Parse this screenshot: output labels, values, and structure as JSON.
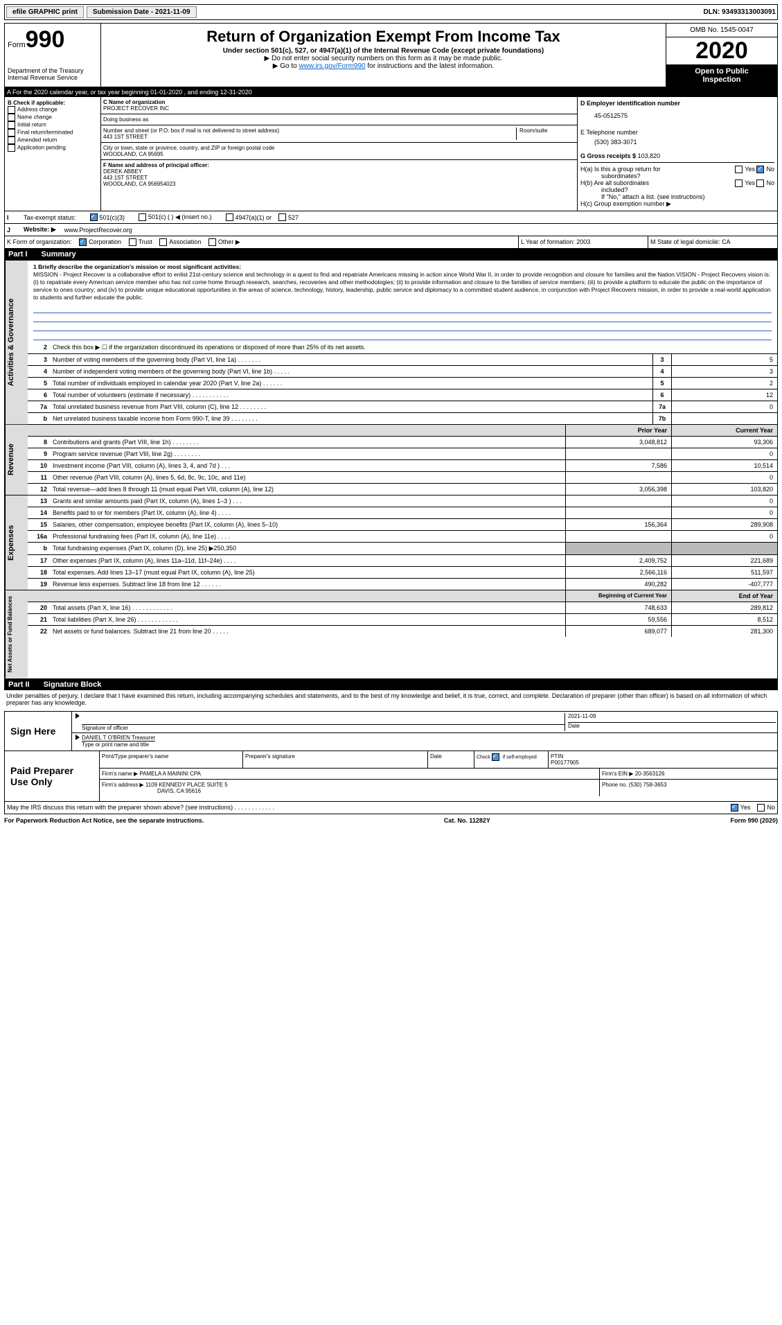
{
  "topbar": {
    "efile": "efile GRAPHIC print",
    "sub_lbl": "Submission Date - 2021-11-09",
    "dln": "DLN: 93493313003091"
  },
  "header": {
    "form_prefix": "Form",
    "form_num": "990",
    "dept": "Department of the Treasury",
    "irs": "Internal Revenue Service",
    "title": "Return of Organization Exempt From Income Tax",
    "sub1": "Under section 501(c), 527, or 4947(a)(1) of the Internal Revenue Code (except private foundations)",
    "sub2": "▶ Do not enter social security numbers on this form as it may be made public.",
    "sub3": "▶ Go to www.irs.gov/Form990 for instructions and the latest information.",
    "omb": "OMB No. 1545-0047",
    "year": "2020",
    "open": "Open to Public",
    "insp": "Inspection"
  },
  "bar_a": "A For the 2020 calendar year, or tax year beginning 01-01-2020    , and ending 12-31-2020",
  "sec_b": {
    "title": "B Check if applicable:",
    "items": [
      "Address change",
      "Name change",
      "Initial return",
      "Final return/terminated",
      "Amended return",
      "Application pending"
    ]
  },
  "sec_c": {
    "name_lbl": "C Name of organization",
    "name": "PROJECT RECOVER INC",
    "dba_lbl": "Doing business as",
    "dba": "",
    "addr_lbl": "Number and street (or P.O. box if mail is not delivered to street address)",
    "addr": "443 1ST STREET",
    "room_lbl": "Room/suite",
    "city_lbl": "City or town, state or province, country, and ZIP or foreign postal code",
    "city": "WOODLAND, CA  95695"
  },
  "sec_d": {
    "lbl": "D Employer identification number",
    "val": "45-0512575"
  },
  "sec_e": {
    "lbl": "E Telephone number",
    "val": "(530) 383-3071"
  },
  "sec_g": {
    "lbl": "G Gross receipts $",
    "val": "103,820"
  },
  "sec_f": {
    "lbl": "F  Name and address of principal officer:",
    "name": "DEREK ABBEY",
    "addr": "443 1ST STREET",
    "city": "WOODLAND, CA  956954023"
  },
  "sec_h": {
    "ha": "H(a)  Is this a group return for",
    "ha2": "subordinates?",
    "hb": "H(b)  Are all subordinates",
    "hb2": "included?",
    "note": "If \"No,\" attach a list. (see instructions)",
    "hc": "H(c)  Group exemption number ▶",
    "yes": "Yes",
    "no": "No"
  },
  "sec_i": {
    "lbl": "Tax-exempt status:",
    "o1": "501(c)(3)",
    "o2": "501(c) (  ) ◀ (insert no.)",
    "o3": "4947(a)(1) or",
    "o4": "527"
  },
  "sec_j": {
    "lbl": "Website: ▶",
    "val": "www.ProjectRecover.org"
  },
  "sec_k": {
    "lbl": "K Form of organization:",
    "o1": "Corporation",
    "o2": "Trust",
    "o3": "Association",
    "o4": "Other ▶"
  },
  "sec_l": {
    "lbl": "L Year of formation:",
    "val": "2003"
  },
  "sec_m": {
    "lbl": "M State of legal domicile:",
    "val": "CA"
  },
  "part1": {
    "num": "Part I",
    "title": "Summary"
  },
  "mission_lbl": "1  Briefly describe the organization's mission or most significant activities:",
  "mission": "MISSION - Project Recover is a collaborative effort to enlist 21st-century science and technology in a quest to find and repatriate Americans missing in action since World War II, in order to provide recognition and closure for families and the Nation.VISION - Project Recovers vision is: (i) to repatriate every American service member who has not come home through research, searches, recoveries and other methodologies; (ii) to provide information and closure to the families of service members; (iii) to provide a platform to educate the public on the importance of service to ones country; and (iv) to provide unique educational opportunities in the areas of science, technology, history, leadership, public service and diplomacy to a committed student audience, in conjunction with Project Recovers mission, in order to provide a real-world application to students and further educate the public.",
  "gov_rows": [
    {
      "n": "2",
      "d": "Check this box ▶ ☐ if the organization discontinued its operations or disposed of more than 25% of its net assets."
    },
    {
      "n": "3",
      "d": "Number of voting members of the governing body (Part VI, line 1a)  .    .    .    .    .    .    .",
      "b": "3",
      "v": "5"
    },
    {
      "n": "4",
      "d": "Number of independent voting members of the governing body (Part VI, line 1b)   .    .    .    .    .",
      "b": "4",
      "v": "3"
    },
    {
      "n": "5",
      "d": "Total number of individuals employed in calendar year 2020 (Part V, line 2a)  .    .    .    .    .    .",
      "b": "5",
      "v": "2"
    },
    {
      "n": "6",
      "d": "Total number of volunteers (estimate if necessary)   .    .    .    .    .    .    .    .    .    .    .",
      "b": "6",
      "v": "12"
    },
    {
      "n": "7a",
      "d": "Total unrelated business revenue from Part VIII, column (C), line 12  .    .    .    .    .    .    .    .",
      "b": "7a",
      "v": "0"
    },
    {
      "n": "b",
      "d": "Net unrelated business taxable income from Form 990-T, line 39   .    .    .    .    .    .    .    .",
      "b": "7b",
      "v": ""
    }
  ],
  "col_hdrs": {
    "prior": "Prior Year",
    "current": "Current Year"
  },
  "rev_rows": [
    {
      "n": "8",
      "d": "Contributions and grants (Part VIII, line 1h)  .    .    .    .    .    .    .    .",
      "p": "3,048,812",
      "c": "93,306"
    },
    {
      "n": "9",
      "d": "Program service revenue (Part VIII, line 2g)   .    .    .    .    .    .    .    .",
      "p": "",
      "c": "0"
    },
    {
      "n": "10",
      "d": "Investment income (Part VIII, column (A), lines 3, 4, and 7d )  .    .    .",
      "p": "7,586",
      "c": "10,514"
    },
    {
      "n": "11",
      "d": "Other revenue (Part VIII, column (A), lines 5, 6d, 8c, 9c, 10c, and 11e)",
      "p": "",
      "c": "0"
    },
    {
      "n": "12",
      "d": "Total revenue—add lines 8 through 11 (must equal Part VIII, column (A), line 12)",
      "p": "3,056,398",
      "c": "103,820"
    }
  ],
  "exp_rows": [
    {
      "n": "13",
      "d": "Grants and similar amounts paid (Part IX, column (A), lines 1–3 )  .    .    .",
      "p": "",
      "c": "0"
    },
    {
      "n": "14",
      "d": "Benefits paid to or for members (Part IX, column (A), line 4)  .    .    .    .",
      "p": "",
      "c": "0"
    },
    {
      "n": "15",
      "d": "Salaries, other compensation, employee benefits (Part IX, column (A), lines 5–10)",
      "p": "156,364",
      "c": "289,908"
    },
    {
      "n": "16a",
      "d": "Professional fundraising fees (Part IX, column (A), line 11e)  .    .    .    .",
      "p": "",
      "c": "0"
    },
    {
      "n": "b",
      "d": "Total fundraising expenses (Part IX, column (D), line 25) ▶250,350",
      "p": "grey",
      "c": "grey"
    },
    {
      "n": "17",
      "d": "Other expenses (Part IX, column (A), lines 11a–11d, 11f–24e)  .    .    .    .",
      "p": "2,409,752",
      "c": "221,689"
    },
    {
      "n": "18",
      "d": "Total expenses. Add lines 13–17 (must equal Part IX, column (A), line 25)",
      "p": "2,566,116",
      "c": "511,597"
    },
    {
      "n": "19",
      "d": "Revenue less expenses. Subtract line 18 from line 12  .    .    .    .    .    .",
      "p": "490,282",
      "c": "-407,777"
    }
  ],
  "net_hdrs": {
    "begin": "Beginning of Current Year",
    "end": "End of Year"
  },
  "net_rows": [
    {
      "n": "20",
      "d": "Total assets (Part X, line 16)  .    .    .    .    .    .    .    .    .    .    .    .",
      "p": "748,633",
      "c": "289,812"
    },
    {
      "n": "21",
      "d": "Total liabilities (Part X, line 26)  .    .    .    .    .    .    .    .    .    .    .    .",
      "p": "59,556",
      "c": "8,512"
    },
    {
      "n": "22",
      "d": "Net assets or fund balances. Subtract line 21 from line 20  .    .    .    .    .",
      "p": "689,077",
      "c": "281,300"
    }
  ],
  "part2": {
    "num": "Part II",
    "title": "Signature Block"
  },
  "penalty": "Under penalties of perjury, I declare that I have examined this return, including accompanying schedules and statements, and to the best of my knowledge and belief, it is true, correct, and complete. Declaration of preparer (other than officer) is based on all information of which preparer has any knowledge.",
  "sign": {
    "here": "Sign Here",
    "sig_lbl": "Signature of officer",
    "date_lbl": "Date",
    "date": "2021-11-09",
    "name": "DANIEL T O'BRIEN  Treasurer",
    "name_lbl": "Type or print name and title"
  },
  "paid": {
    "title": "Paid Preparer Use Only",
    "h1": "Print/Type preparer's name",
    "h2": "Preparer's signature",
    "h3": "Date",
    "h4": "Check ☑ if self-employed",
    "h5": "PTIN",
    "ptin": "P00177905",
    "firm_lbl": "Firm's name    ▶",
    "firm": "PAMELA A MAININI CPA",
    "ein_lbl": "Firm's EIN ▶",
    "ein": "20-3563126",
    "addr_lbl": "Firm's address ▶",
    "addr1": "1109 KENNEDY PLACE SUITE 5",
    "addr2": "DAVIS, CA  95616",
    "phone_lbl": "Phone no.",
    "phone": "(530) 758-3653"
  },
  "discuss": "May the IRS discuss this return with the preparer shown above? (see instructions)    .    .    .    .    .    .    .    .    .    .    .    .",
  "footer": {
    "l": "For Paperwork Reduction Act Notice, see the separate instructions.",
    "c": "Cat. No. 11282Y",
    "r": "Form 990 (2020)"
  },
  "vtabs": {
    "gov": "Activities & Governance",
    "rev": "Revenue",
    "exp": "Expenses",
    "net": "Net Assets or Fund Balances"
  }
}
